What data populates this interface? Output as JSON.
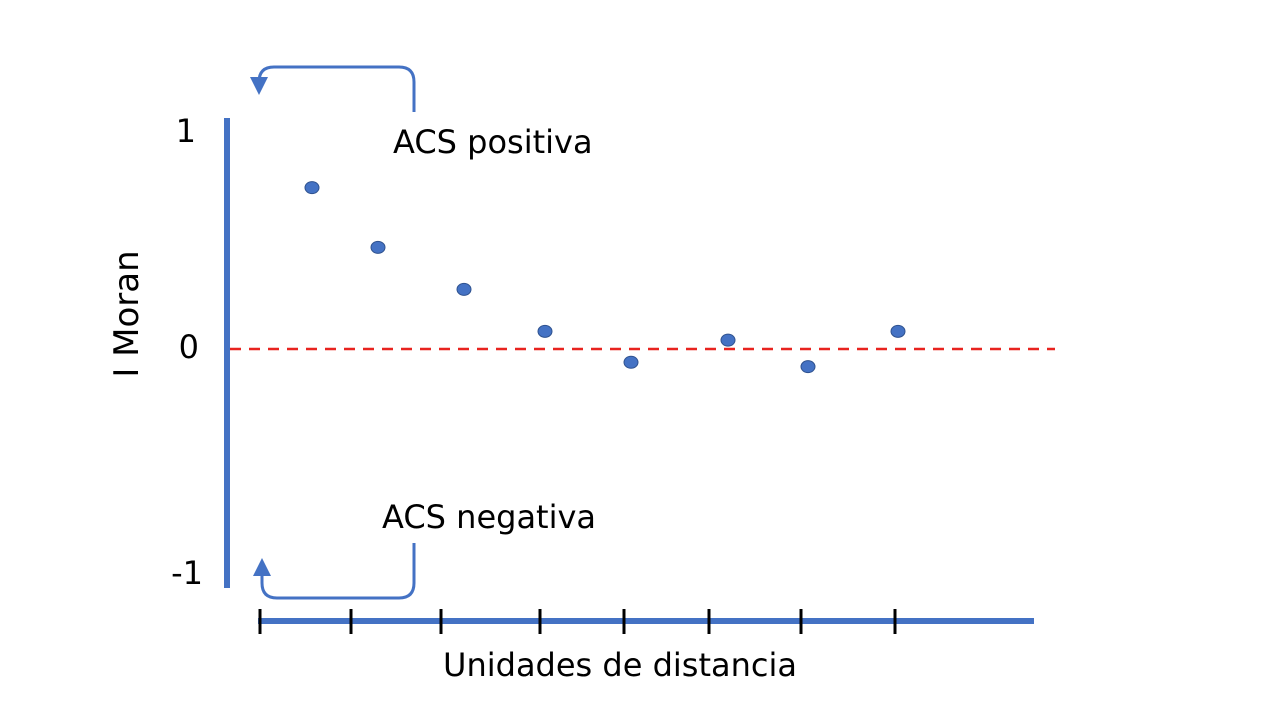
{
  "chart_data": {
    "type": "scatter",
    "title": "",
    "xlabel": "Unidades de distancia",
    "ylabel": "I Moran",
    "x": [
      1,
      2,
      3,
      4,
      5,
      6,
      7,
      8
    ],
    "y": [
      0.73,
      0.46,
      0.27,
      0.08,
      -0.06,
      0.04,
      -0.08,
      0.08
    ],
    "ylim": [
      -1,
      1
    ],
    "y_ticks": [
      "1",
      "0",
      "-1"
    ],
    "x_tick_count": 8,
    "reference_line": {
      "y": 0,
      "style": "dashed",
      "color": "#e8231f"
    },
    "annotations": {
      "positive": "ACS positiva",
      "negative": "ACS negativa"
    },
    "grid": false,
    "colors": {
      "axis": "#4472c4",
      "points": "#4472c4",
      "ticks": "#000000"
    }
  }
}
